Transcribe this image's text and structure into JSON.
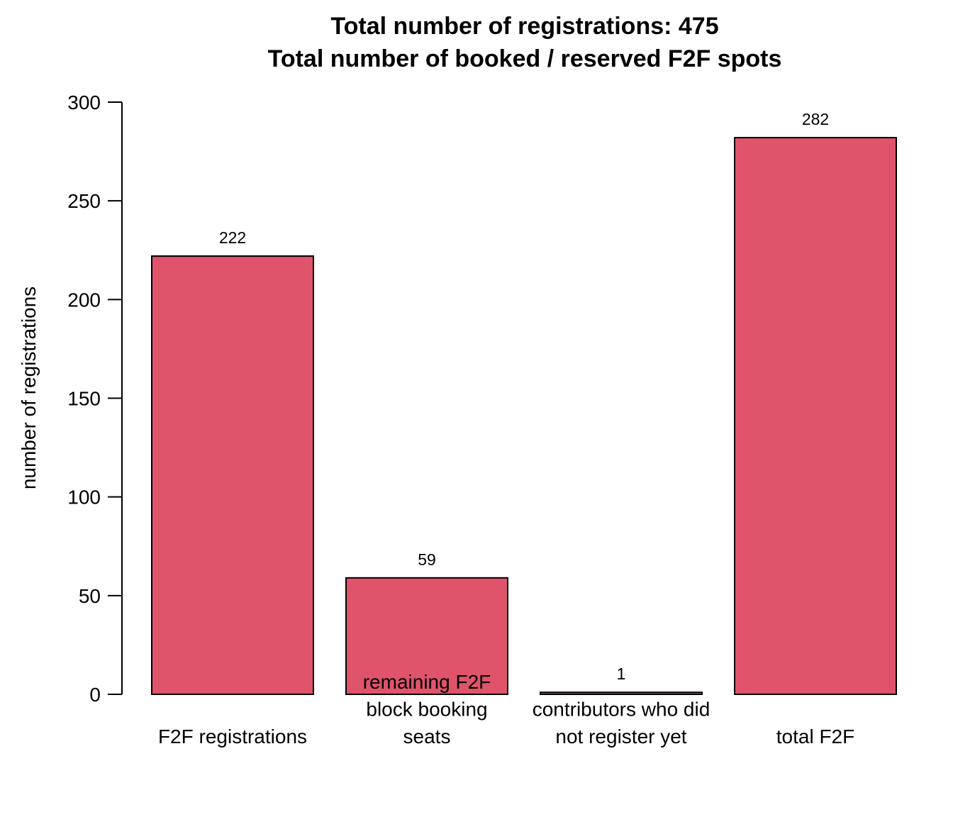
{
  "chart_data": {
    "type": "bar",
    "title_lines": [
      "Total number of registrations: 475",
      "Total number of booked / reserved F2F spots"
    ],
    "xlabel": "",
    "ylabel": "number of registrations",
    "ylim": [
      0,
      300
    ],
    "yticks": [
      0,
      50,
      100,
      150,
      200,
      250,
      300
    ],
    "categories": [
      {
        "label_lines": [
          "F2F registrations"
        ]
      },
      {
        "label_lines": [
          "remaining F2F",
          "block booking",
          "seats"
        ]
      },
      {
        "label_lines": [
          "contributors who did",
          "not register yet"
        ]
      },
      {
        "label_lines": [
          "total F2F"
        ]
      }
    ],
    "values": [
      222,
      59,
      1,
      282
    ],
    "value_labels": [
      "222",
      "59",
      "1",
      "282"
    ],
    "bar_color": "#df536b",
    "bar_border_color": "#000000",
    "grid": false,
    "legend": "none"
  }
}
